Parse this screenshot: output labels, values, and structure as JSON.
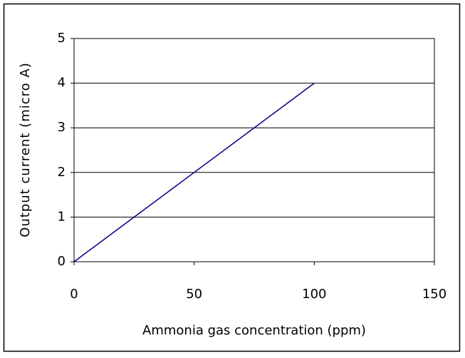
{
  "chart_data": {
    "type": "line",
    "x_label": "Ammonia gas concentration (ppm)",
    "y_label": "Output current (micro A)",
    "x": [
      0,
      100
    ],
    "values": [
      0,
      4
    ],
    "color": "#000080",
    "xlim": [
      0,
      150
    ],
    "xticks": [
      0,
      50,
      100,
      150
    ],
    "ylim": [
      0,
      5
    ],
    "yticks": [
      0,
      1,
      2,
      3,
      4,
      5
    ],
    "grid": true
  }
}
